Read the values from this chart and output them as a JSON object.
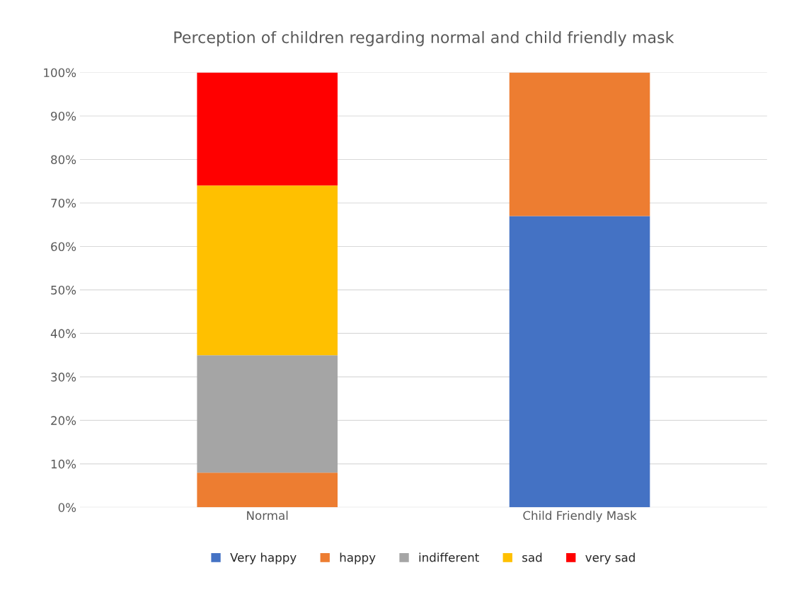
{
  "chart_data": {
    "type": "bar",
    "title": "Perception of children regarding normal and child friendly mask",
    "categories": [
      "Normal",
      "Child Friendly Mask"
    ],
    "stacked": true,
    "series": [
      {
        "name": "Very happy",
        "color": "#4472c4",
        "values": [
          null,
          67
        ]
      },
      {
        "name": "happy",
        "color": "#ed7d31",
        "values": [
          8,
          33
        ]
      },
      {
        "name": "indifferent",
        "color": "#a5a5a5",
        "values": [
          27,
          null
        ]
      },
      {
        "name": "sad",
        "color": "#ffc000",
        "values": [
          39,
          null
        ]
      },
      {
        "name": "very sad",
        "color": "#ff0000",
        "values": [
          26,
          null
        ]
      }
    ],
    "ylim": [
      0,
      100
    ],
    "yticks": [
      {
        "value": 0,
        "label": "0%"
      },
      {
        "value": 10,
        "label": "10%"
      },
      {
        "value": 20,
        "label": "20%"
      },
      {
        "value": 30,
        "label": "30%"
      },
      {
        "value": 40,
        "label": "40%"
      },
      {
        "value": 50,
        "label": "50%"
      },
      {
        "value": 60,
        "label": "60%"
      },
      {
        "value": 70,
        "label": "70%"
      },
      {
        "value": 80,
        "label": "80%"
      },
      {
        "value": 90,
        "label": "90%"
      },
      {
        "value": 100,
        "label": "100%"
      }
    ],
    "grid": "y",
    "legend": "bottom"
  }
}
